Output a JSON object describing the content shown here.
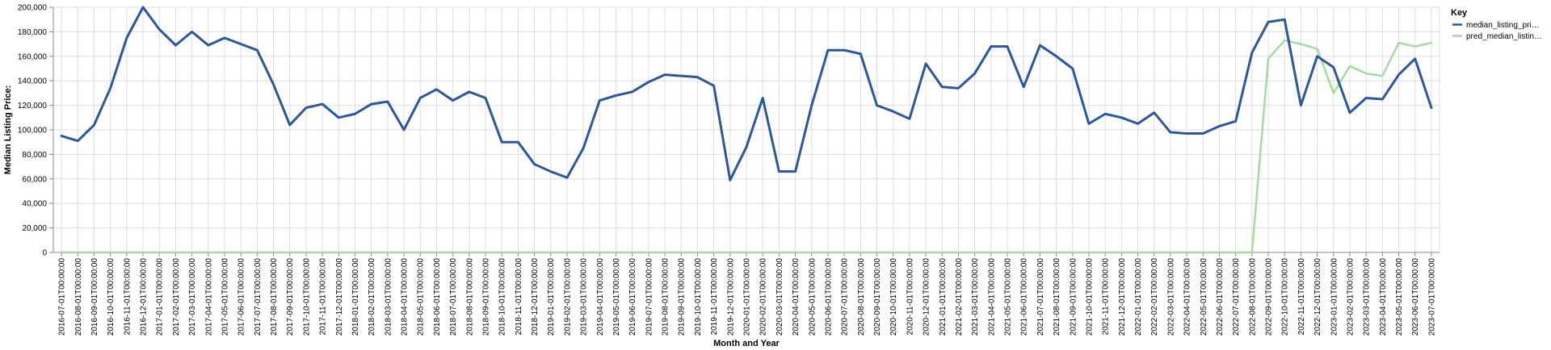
{
  "chart_data": {
    "type": "line",
    "xlabel": "Month and Year",
    "ylabel": "Median Listing Price:",
    "ylim": [
      0,
      200000
    ],
    "yticks": [
      0,
      20000,
      40000,
      60000,
      80000,
      100000,
      120000,
      140000,
      160000,
      180000,
      200000
    ],
    "ytick_labels": [
      "0",
      "20,000",
      "40,000",
      "60,000",
      "80,000",
      "100,000",
      "120,000",
      "140,000",
      "160,000",
      "180,000",
      "200,000"
    ],
    "grid": true,
    "legend_title": "Key",
    "legend_position": "right",
    "x": [
      "2016-07-01T00:00:00",
      "2016-08-01T00:00:00",
      "2016-09-01T00:00:00",
      "2016-10-01T00:00:00",
      "2016-11-01T00:00:00",
      "2016-12-01T00:00:00",
      "2017-01-01T00:00:00",
      "2017-02-01T00:00:00",
      "2017-03-01T00:00:00",
      "2017-04-01T00:00:00",
      "2017-05-01T00:00:00",
      "2017-06-01T00:00:00",
      "2017-07-01T00:00:00",
      "2017-08-01T00:00:00",
      "2017-09-01T00:00:00",
      "2017-10-01T00:00:00",
      "2017-11-01T00:00:00",
      "2017-12-01T00:00:00",
      "2018-01-01T00:00:00",
      "2018-02-01T00:00:00",
      "2018-03-01T00:00:00",
      "2018-04-01T00:00:00",
      "2018-05-01T00:00:00",
      "2018-06-01T00:00:00",
      "2018-07-01T00:00:00",
      "2018-08-01T00:00:00",
      "2018-09-01T00:00:00",
      "2018-10-01T00:00:00",
      "2018-11-01T00:00:00",
      "2018-12-01T00:00:00",
      "2019-01-01T00:00:00",
      "2019-02-01T00:00:00",
      "2019-03-01T00:00:00",
      "2019-04-01T00:00:00",
      "2019-05-01T00:00:00",
      "2019-06-01T00:00:00",
      "2019-07-01T00:00:00",
      "2019-08-01T00:00:00",
      "2019-09-01T00:00:00",
      "2019-10-01T00:00:00",
      "2019-11-01T00:00:00",
      "2019-12-01T00:00:00",
      "2020-01-01T00:00:00",
      "2020-02-01T00:00:00",
      "2020-03-01T00:00:00",
      "2020-04-01T00:00:00",
      "2020-05-01T00:00:00",
      "2020-06-01T00:00:00",
      "2020-07-01T00:00:00",
      "2020-08-01T00:00:00",
      "2020-09-01T00:00:00",
      "2020-10-01T00:00:00",
      "2020-11-01T00:00:00",
      "2020-12-01T00:00:00",
      "2021-01-01T00:00:00",
      "2021-02-01T00:00:00",
      "2021-03-01T00:00:00",
      "2021-04-01T00:00:00",
      "2021-05-01T00:00:00",
      "2021-06-01T00:00:00",
      "2021-07-01T00:00:00",
      "2021-08-01T00:00:00",
      "2021-09-01T00:00:00",
      "2021-10-01T00:00:00",
      "2021-11-01T00:00:00",
      "2021-12-01T00:00:00",
      "2022-01-01T00:00:00",
      "2022-02-01T00:00:00",
      "2022-03-01T00:00:00",
      "2022-04-01T00:00:00",
      "2022-05-01T00:00:00",
      "2022-06-01T00:00:00",
      "2022-07-01T00:00:00",
      "2022-08-01T00:00:00",
      "2022-09-01T00:00:00",
      "2022-10-01T00:00:00",
      "2022-11-01T00:00:00",
      "2022-12-01T00:00:00",
      "2023-01-01T00:00:00",
      "2023-02-01T00:00:00",
      "2023-03-01T00:00:00",
      "2023-04-01T00:00:00",
      "2023-05-01T00:00:00",
      "2023-06-01T00:00:00",
      "2023-07-01T00:00:00"
    ],
    "series": [
      {
        "name": "median_listing_pri…",
        "color": "#2b56a0",
        "values": [
          95000,
          91000,
          104000,
          134000,
          175000,
          200000,
          182000,
          169000,
          180000,
          169000,
          175000,
          170000,
          165000,
          137000,
          104000,
          118000,
          121000,
          110000,
          113000,
          121000,
          123000,
          100000,
          126000,
          133000,
          124000,
          131000,
          126000,
          90000,
          90000,
          72000,
          66000,
          61000,
          85000,
          124000,
          128000,
          131000,
          139000,
          145000,
          144000,
          143000,
          136000,
          59000,
          86000,
          126000,
          66000,
          66000,
          120000,
          165000,
          165000,
          162000,
          120000,
          115000,
          109000,
          154000,
          135000,
          134000,
          146000,
          168000,
          168000,
          135000,
          169000,
          160000,
          150000,
          105000,
          113000,
          110000,
          105000,
          114000,
          98000,
          97000,
          97000,
          103000,
          107000,
          163000,
          188000,
          190000,
          120000,
          160000,
          151000,
          114000,
          126000,
          125000,
          145000,
          158000,
          118000
        ]
      },
      {
        "name": "pred_median_listin…",
        "color": "#a3dba0",
        "values": [
          0,
          0,
          0,
          0,
          0,
          0,
          0,
          0,
          0,
          0,
          0,
          0,
          0,
          0,
          0,
          0,
          0,
          0,
          0,
          0,
          0,
          0,
          0,
          0,
          0,
          0,
          0,
          0,
          0,
          0,
          0,
          0,
          0,
          0,
          0,
          0,
          0,
          0,
          0,
          0,
          0,
          0,
          0,
          0,
          0,
          0,
          0,
          0,
          0,
          0,
          0,
          0,
          0,
          0,
          0,
          0,
          0,
          0,
          0,
          0,
          0,
          0,
          0,
          0,
          0,
          0,
          0,
          0,
          0,
          0,
          0,
          0,
          0,
          0,
          158000,
          173000,
          170000,
          166000,
          130000,
          152000,
          146000,
          144000,
          171000,
          168000,
          171000
        ]
      }
    ]
  }
}
